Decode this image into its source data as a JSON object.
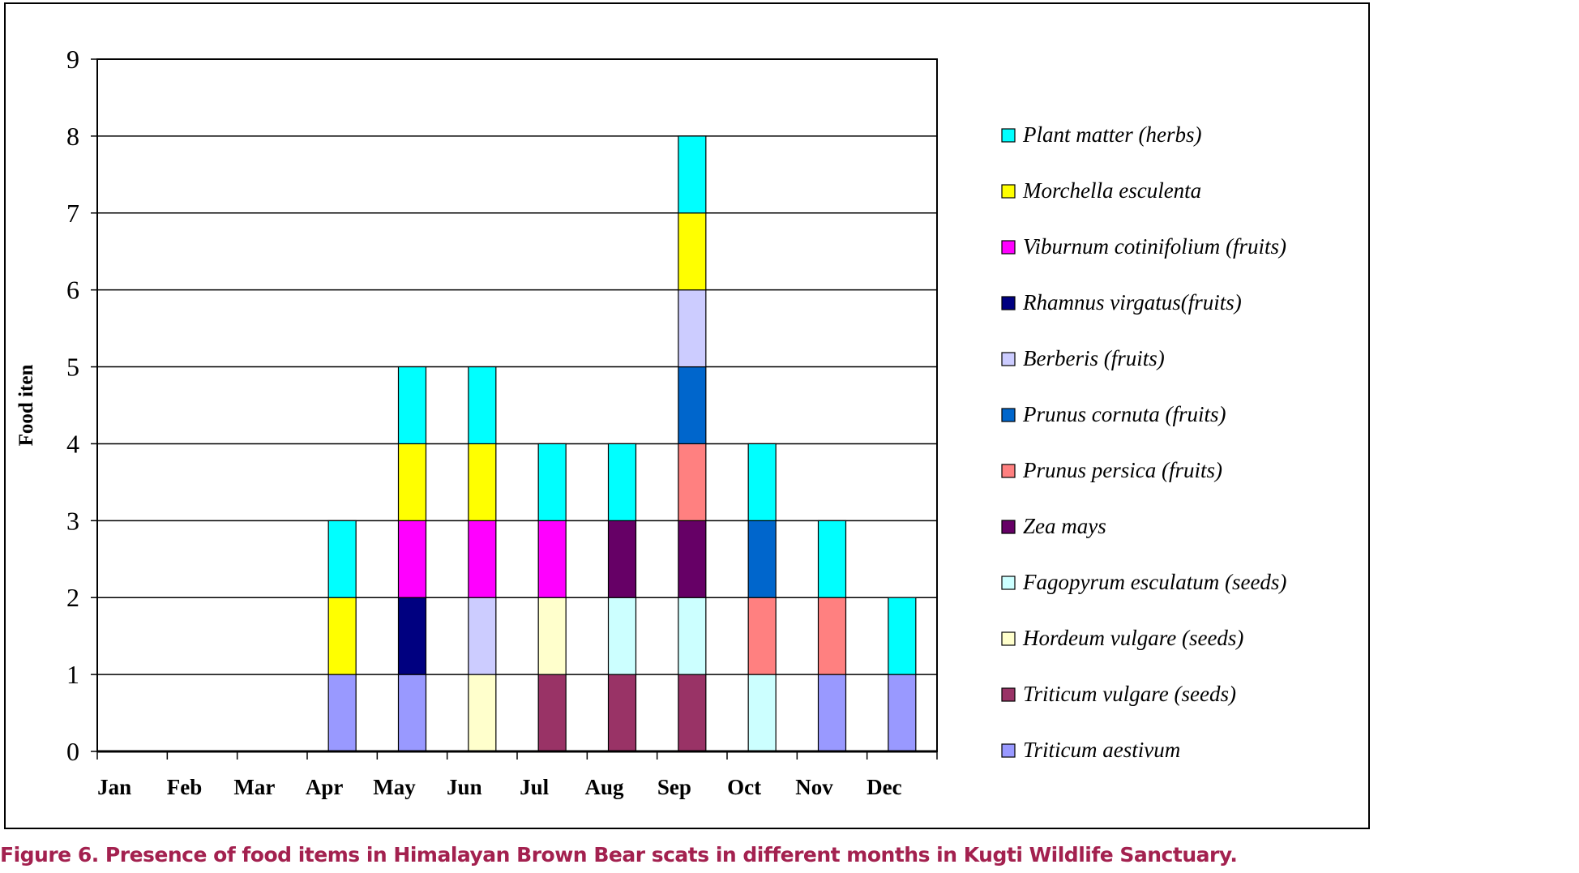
{
  "chart_data": {
    "type": "bar",
    "stacked": true,
    "title": "",
    "xlabel": "",
    "ylabel": "Food iten",
    "ylim": [
      0,
      9
    ],
    "yticks": [
      "0",
      "1",
      "2",
      "3",
      "4",
      "5",
      "6",
      "7",
      "8",
      "9"
    ],
    "grid": true,
    "legend_placement": "right",
    "categories": [
      "Jan",
      "Feb",
      "Mar",
      "Apr",
      "May",
      "Jun",
      "Jul",
      "Aug",
      "Sep",
      "Oct",
      "Nov",
      "Dec"
    ],
    "series": [
      {
        "name": "Triticum aestivum",
        "color": "#9999ff",
        "values": [
          0,
          0,
          0,
          1,
          1,
          0,
          0,
          0,
          0,
          0,
          1,
          1
        ]
      },
      {
        "name": "Triticum vulgare (seeds)",
        "color": "#993366",
        "values": [
          0,
          0,
          0,
          0,
          0,
          0,
          1,
          1,
          1,
          0,
          0,
          0
        ]
      },
      {
        "name": "Hordeum vulgare (seeds)",
        "color": "#ffffcc",
        "values": [
          0,
          0,
          0,
          0,
          0,
          1,
          1,
          0,
          0,
          0,
          0,
          0
        ]
      },
      {
        "name": "Fagopyrum esculatum (seeds)",
        "color": "#ccffff",
        "values": [
          0,
          0,
          0,
          0,
          0,
          0,
          0,
          1,
          1,
          1,
          0,
          0
        ]
      },
      {
        "name": "Zea mays",
        "color": "#660066",
        "values": [
          0,
          0,
          0,
          0,
          0,
          0,
          0,
          1,
          1,
          0,
          0,
          0
        ]
      },
      {
        "name": "Prunus persica (fruits)",
        "color": "#ff8080",
        "values": [
          0,
          0,
          0,
          0,
          0,
          0,
          0,
          0,
          1,
          1,
          1,
          0
        ]
      },
      {
        "name": "Prunus cornuta (fruits)",
        "color": "#0066cc",
        "values": [
          0,
          0,
          0,
          0,
          0,
          0,
          0,
          0,
          1,
          1,
          0,
          0
        ]
      },
      {
        "name": "Berberis  (fruits)",
        "color": "#ccccff",
        "values": [
          0,
          0,
          0,
          0,
          0,
          1,
          0,
          0,
          1,
          0,
          0,
          0
        ]
      },
      {
        "name": "Rhamnus virgatus(fruits)",
        "color": "#000080",
        "values": [
          0,
          0,
          0,
          0,
          1,
          0,
          0,
          0,
          0,
          0,
          0,
          0
        ]
      },
      {
        "name": "Viburnum cotinifolium (fruits)",
        "color": "#ff00ff",
        "values": [
          0,
          0,
          0,
          0,
          1,
          1,
          1,
          0,
          0,
          0,
          0,
          0
        ]
      },
      {
        "name": "Morchella esculenta",
        "color": "#ffff00",
        "values": [
          0,
          0,
          0,
          1,
          1,
          1,
          0,
          0,
          1,
          0,
          0,
          0
        ]
      },
      {
        "name": "Plant matter (herbs)",
        "color": "#00ffff",
        "values": [
          0,
          0,
          0,
          1,
          1,
          1,
          1,
          1,
          1,
          1,
          1,
          1
        ]
      }
    ]
  },
  "caption": "Figure 6. Presence of food items in Himalayan Brown Bear scats in different months in Kugti Wildlife Sanctuary."
}
